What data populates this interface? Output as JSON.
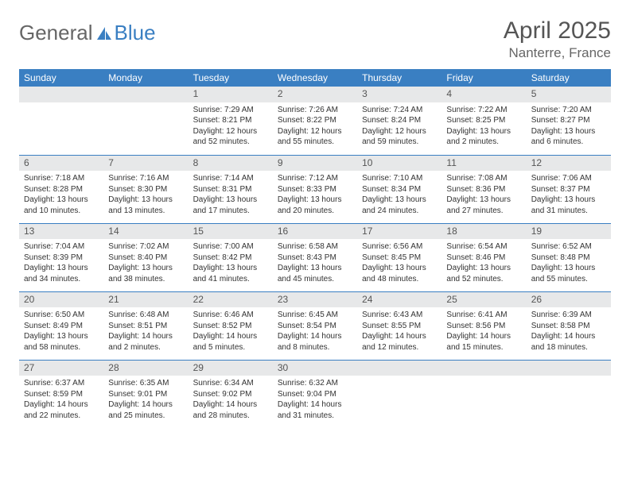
{
  "logo": {
    "text_gray": "General",
    "text_blue": "Blue"
  },
  "title": "April 2025",
  "subtitle": "Nanterre, France",
  "header_bg": "#3a7fc2",
  "daynum_bg": "#e7e8e9",
  "border_color": "#3a7fc2",
  "days_of_week": [
    "Sunday",
    "Monday",
    "Tuesday",
    "Wednesday",
    "Thursday",
    "Friday",
    "Saturday"
  ],
  "weeks": [
    [
      null,
      null,
      {
        "n": "1",
        "sunrise": "7:29 AM",
        "sunset": "8:21 PM",
        "dl": "12 hours and 52 minutes."
      },
      {
        "n": "2",
        "sunrise": "7:26 AM",
        "sunset": "8:22 PM",
        "dl": "12 hours and 55 minutes."
      },
      {
        "n": "3",
        "sunrise": "7:24 AM",
        "sunset": "8:24 PM",
        "dl": "12 hours and 59 minutes."
      },
      {
        "n": "4",
        "sunrise": "7:22 AM",
        "sunset": "8:25 PM",
        "dl": "13 hours and 2 minutes."
      },
      {
        "n": "5",
        "sunrise": "7:20 AM",
        "sunset": "8:27 PM",
        "dl": "13 hours and 6 minutes."
      }
    ],
    [
      {
        "n": "6",
        "sunrise": "7:18 AM",
        "sunset": "8:28 PM",
        "dl": "13 hours and 10 minutes."
      },
      {
        "n": "7",
        "sunrise": "7:16 AM",
        "sunset": "8:30 PM",
        "dl": "13 hours and 13 minutes."
      },
      {
        "n": "8",
        "sunrise": "7:14 AM",
        "sunset": "8:31 PM",
        "dl": "13 hours and 17 minutes."
      },
      {
        "n": "9",
        "sunrise": "7:12 AM",
        "sunset": "8:33 PM",
        "dl": "13 hours and 20 minutes."
      },
      {
        "n": "10",
        "sunrise": "7:10 AM",
        "sunset": "8:34 PM",
        "dl": "13 hours and 24 minutes."
      },
      {
        "n": "11",
        "sunrise": "7:08 AM",
        "sunset": "8:36 PM",
        "dl": "13 hours and 27 minutes."
      },
      {
        "n": "12",
        "sunrise": "7:06 AM",
        "sunset": "8:37 PM",
        "dl": "13 hours and 31 minutes."
      }
    ],
    [
      {
        "n": "13",
        "sunrise": "7:04 AM",
        "sunset": "8:39 PM",
        "dl": "13 hours and 34 minutes."
      },
      {
        "n": "14",
        "sunrise": "7:02 AM",
        "sunset": "8:40 PM",
        "dl": "13 hours and 38 minutes."
      },
      {
        "n": "15",
        "sunrise": "7:00 AM",
        "sunset": "8:42 PM",
        "dl": "13 hours and 41 minutes."
      },
      {
        "n": "16",
        "sunrise": "6:58 AM",
        "sunset": "8:43 PM",
        "dl": "13 hours and 45 minutes."
      },
      {
        "n": "17",
        "sunrise": "6:56 AM",
        "sunset": "8:45 PM",
        "dl": "13 hours and 48 minutes."
      },
      {
        "n": "18",
        "sunrise": "6:54 AM",
        "sunset": "8:46 PM",
        "dl": "13 hours and 52 minutes."
      },
      {
        "n": "19",
        "sunrise": "6:52 AM",
        "sunset": "8:48 PM",
        "dl": "13 hours and 55 minutes."
      }
    ],
    [
      {
        "n": "20",
        "sunrise": "6:50 AM",
        "sunset": "8:49 PM",
        "dl": "13 hours and 58 minutes."
      },
      {
        "n": "21",
        "sunrise": "6:48 AM",
        "sunset": "8:51 PM",
        "dl": "14 hours and 2 minutes."
      },
      {
        "n": "22",
        "sunrise": "6:46 AM",
        "sunset": "8:52 PM",
        "dl": "14 hours and 5 minutes."
      },
      {
        "n": "23",
        "sunrise": "6:45 AM",
        "sunset": "8:54 PM",
        "dl": "14 hours and 8 minutes."
      },
      {
        "n": "24",
        "sunrise": "6:43 AM",
        "sunset": "8:55 PM",
        "dl": "14 hours and 12 minutes."
      },
      {
        "n": "25",
        "sunrise": "6:41 AM",
        "sunset": "8:56 PM",
        "dl": "14 hours and 15 minutes."
      },
      {
        "n": "26",
        "sunrise": "6:39 AM",
        "sunset": "8:58 PM",
        "dl": "14 hours and 18 minutes."
      }
    ],
    [
      {
        "n": "27",
        "sunrise": "6:37 AM",
        "sunset": "8:59 PM",
        "dl": "14 hours and 22 minutes."
      },
      {
        "n": "28",
        "sunrise": "6:35 AM",
        "sunset": "9:01 PM",
        "dl": "14 hours and 25 minutes."
      },
      {
        "n": "29",
        "sunrise": "6:34 AM",
        "sunset": "9:02 PM",
        "dl": "14 hours and 28 minutes."
      },
      {
        "n": "30",
        "sunrise": "6:32 AM",
        "sunset": "9:04 PM",
        "dl": "14 hours and 31 minutes."
      },
      null,
      null,
      null
    ]
  ]
}
